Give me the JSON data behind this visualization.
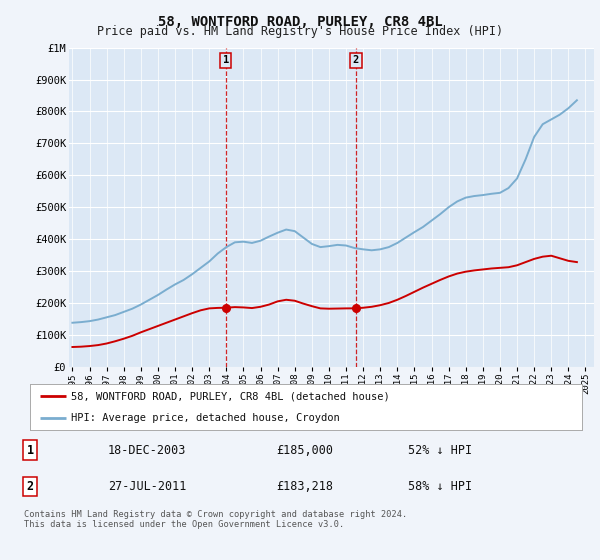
{
  "title": "58, WONTFORD ROAD, PURLEY, CR8 4BL",
  "subtitle": "Price paid vs. HM Land Registry's House Price Index (HPI)",
  "ylabel_ticks": [
    "£0",
    "£100K",
    "£200K",
    "£300K",
    "£400K",
    "£500K",
    "£600K",
    "£700K",
    "£800K",
    "£900K",
    "£1M"
  ],
  "ytick_values": [
    0,
    100000,
    200000,
    300000,
    400000,
    500000,
    600000,
    700000,
    800000,
    900000,
    1000000
  ],
  "ylim": [
    0,
    1000000
  ],
  "xlim_start": 1994.8,
  "xlim_end": 2025.5,
  "background_color": "#f0f4fa",
  "plot_bg_color": "#dce8f5",
  "grid_color": "#ffffff",
  "transaction1_x": 2003.96,
  "transaction1_y": 185000,
  "transaction2_x": 2011.57,
  "transaction2_y": 183218,
  "legend_label_red": "58, WONTFORD ROAD, PURLEY, CR8 4BL (detached house)",
  "legend_label_blue": "HPI: Average price, detached house, Croydon",
  "info1_num": "1",
  "info1_date": "18-DEC-2003",
  "info1_price": "£185,000",
  "info1_hpi": "52% ↓ HPI",
  "info2_num": "2",
  "info2_date": "27-JUL-2011",
  "info2_price": "£183,218",
  "info2_hpi": "58% ↓ HPI",
  "footnote_line1": "Contains HM Land Registry data © Crown copyright and database right 2024.",
  "footnote_line2": "This data is licensed under the Open Government Licence v3.0.",
  "red_color": "#cc0000",
  "blue_color": "#7aadcf",
  "title_fontsize": 10,
  "subtitle_fontsize": 8.5,
  "years_hpi": [
    1995.0,
    1995.5,
    1996.0,
    1996.5,
    1997.0,
    1997.5,
    1998.0,
    1998.5,
    1999.0,
    1999.5,
    2000.0,
    2000.5,
    2001.0,
    2001.5,
    2002.0,
    2002.5,
    2003.0,
    2003.5,
    2004.0,
    2004.5,
    2005.0,
    2005.5,
    2006.0,
    2006.5,
    2007.0,
    2007.5,
    2008.0,
    2008.5,
    2009.0,
    2009.5,
    2010.0,
    2010.5,
    2011.0,
    2011.5,
    2012.0,
    2012.5,
    2013.0,
    2013.5,
    2014.0,
    2014.5,
    2015.0,
    2015.5,
    2016.0,
    2016.5,
    2017.0,
    2017.5,
    2018.0,
    2018.5,
    2019.0,
    2019.5,
    2020.0,
    2020.5,
    2021.0,
    2021.5,
    2022.0,
    2022.5,
    2023.0,
    2023.5,
    2024.0,
    2024.5
  ],
  "hpi_values": [
    138000,
    140000,
    143000,
    148000,
    155000,
    162000,
    172000,
    182000,
    195000,
    210000,
    225000,
    242000,
    258000,
    272000,
    290000,
    310000,
    330000,
    355000,
    375000,
    390000,
    392000,
    388000,
    395000,
    408000,
    420000,
    430000,
    425000,
    405000,
    385000,
    375000,
    378000,
    382000,
    380000,
    372000,
    368000,
    365000,
    368000,
    375000,
    388000,
    405000,
    422000,
    438000,
    458000,
    478000,
    500000,
    518000,
    530000,
    535000,
    538000,
    542000,
    545000,
    560000,
    590000,
    650000,
    720000,
    760000,
    775000,
    790000,
    810000,
    835000
  ],
  "years_red": [
    1995.0,
    1995.5,
    1996.0,
    1996.5,
    1997.0,
    1997.5,
    1998.0,
    1998.5,
    1999.0,
    1999.5,
    2000.0,
    2000.5,
    2001.0,
    2001.5,
    2002.0,
    2002.5,
    2003.0,
    2003.5,
    2003.96,
    2004.5,
    2005.0,
    2005.5,
    2006.0,
    2006.5,
    2007.0,
    2007.5,
    2008.0,
    2008.5,
    2009.0,
    2009.5,
    2010.0,
    2010.5,
    2011.0,
    2011.57,
    2012.0,
    2012.5,
    2013.0,
    2013.5,
    2014.0,
    2014.5,
    2015.0,
    2015.5,
    2016.0,
    2016.5,
    2017.0,
    2017.5,
    2018.0,
    2018.5,
    2019.0,
    2019.5,
    2020.0,
    2020.5,
    2021.0,
    2021.5,
    2022.0,
    2022.5,
    2023.0,
    2023.5,
    2024.0,
    2024.5
  ],
  "red_values": [
    62000,
    63000,
    65000,
    68000,
    73000,
    80000,
    88000,
    97000,
    108000,
    118000,
    128000,
    138000,
    148000,
    158000,
    168000,
    177000,
    183000,
    184500,
    185000,
    187000,
    186000,
    184000,
    188000,
    195000,
    205000,
    210000,
    207000,
    198000,
    190000,
    183000,
    182000,
    182500,
    183000,
    183218,
    185000,
    188000,
    193000,
    200000,
    210000,
    222000,
    235000,
    248000,
    260000,
    272000,
    283000,
    292000,
    298000,
    302000,
    305000,
    308000,
    310000,
    312000,
    318000,
    328000,
    338000,
    345000,
    348000,
    340000,
    332000,
    328000
  ]
}
